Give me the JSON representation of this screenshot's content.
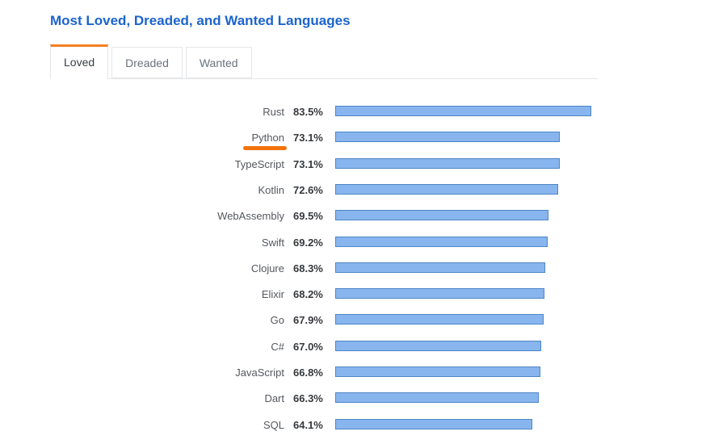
{
  "page": {
    "title": "Most Loved, Dreaded, and Wanted Languages"
  },
  "tabs": [
    {
      "label": "Loved",
      "active": true
    },
    {
      "label": "Dreaded",
      "active": false
    },
    {
      "label": "Wanted",
      "active": false
    }
  ],
  "chart_data": {
    "type": "bar",
    "orientation": "horizontal",
    "title": "Most Loved, Dreaded, and Wanted Languages",
    "active_tab": "Loved",
    "categories": [
      "Rust",
      "Python",
      "TypeScript",
      "Kotlin",
      "WebAssembly",
      "Swift",
      "Clojure",
      "Elixir",
      "Go",
      "C#",
      "JavaScript",
      "Dart",
      "SQL"
    ],
    "values": [
      83.5,
      73.1,
      73.1,
      72.6,
      69.5,
      69.2,
      68.3,
      68.2,
      67.9,
      67.0,
      66.8,
      66.3,
      64.1
    ],
    "value_labels": [
      "83.5%",
      "73.1%",
      "73.1%",
      "72.6%",
      "69.5%",
      "69.2%",
      "68.3%",
      "68.2%",
      "67.9%",
      "67.0%",
      "66.8%",
      "66.3%",
      "64.1%"
    ],
    "highlighted_category": "Python",
    "xlim": [
      0,
      100
    ],
    "grid": false,
    "legend": false
  },
  "colors": {
    "title": "#1b64cd",
    "tab_border": "#e4e6e8",
    "tab_active_accent": "#f48024",
    "tab_active_text": "#3b4045",
    "tab_inactive_text": "#6a737c",
    "label_text": "#54585e",
    "value_text": "#36393d",
    "bar_fill": "#88b5ee",
    "bar_border": "#4e86c6",
    "highlight_underline": "#f2720c"
  }
}
